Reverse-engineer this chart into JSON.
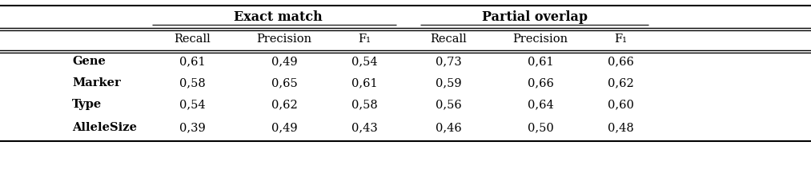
{
  "title_row": [
    "Exact match",
    "Partial overlap"
  ],
  "header_row": [
    "",
    "Recall",
    "Precision",
    "F₁",
    "Recall",
    "Precision",
    "F₁"
  ],
  "rows": [
    [
      "Gene",
      "0,61",
      "0,49",
      "0,54",
      "0,73",
      "0,61",
      "0,66"
    ],
    [
      "Marker",
      "0,58",
      "0,65",
      "0,61",
      "0,59",
      "0,66",
      "0,62"
    ],
    [
      "Type",
      "0,54",
      "0,62",
      "0,58",
      "0,56",
      "0,64",
      "0,60"
    ],
    [
      "AlleleSize",
      "0,39",
      "0,49",
      "0,43",
      "0,46",
      "0,50",
      "0,48"
    ]
  ],
  "background_color": "#ffffff",
  "line_color": "#000000",
  "fontsize_header": 10.5,
  "fontsize_data": 10.5,
  "fontsize_title": 11.5
}
